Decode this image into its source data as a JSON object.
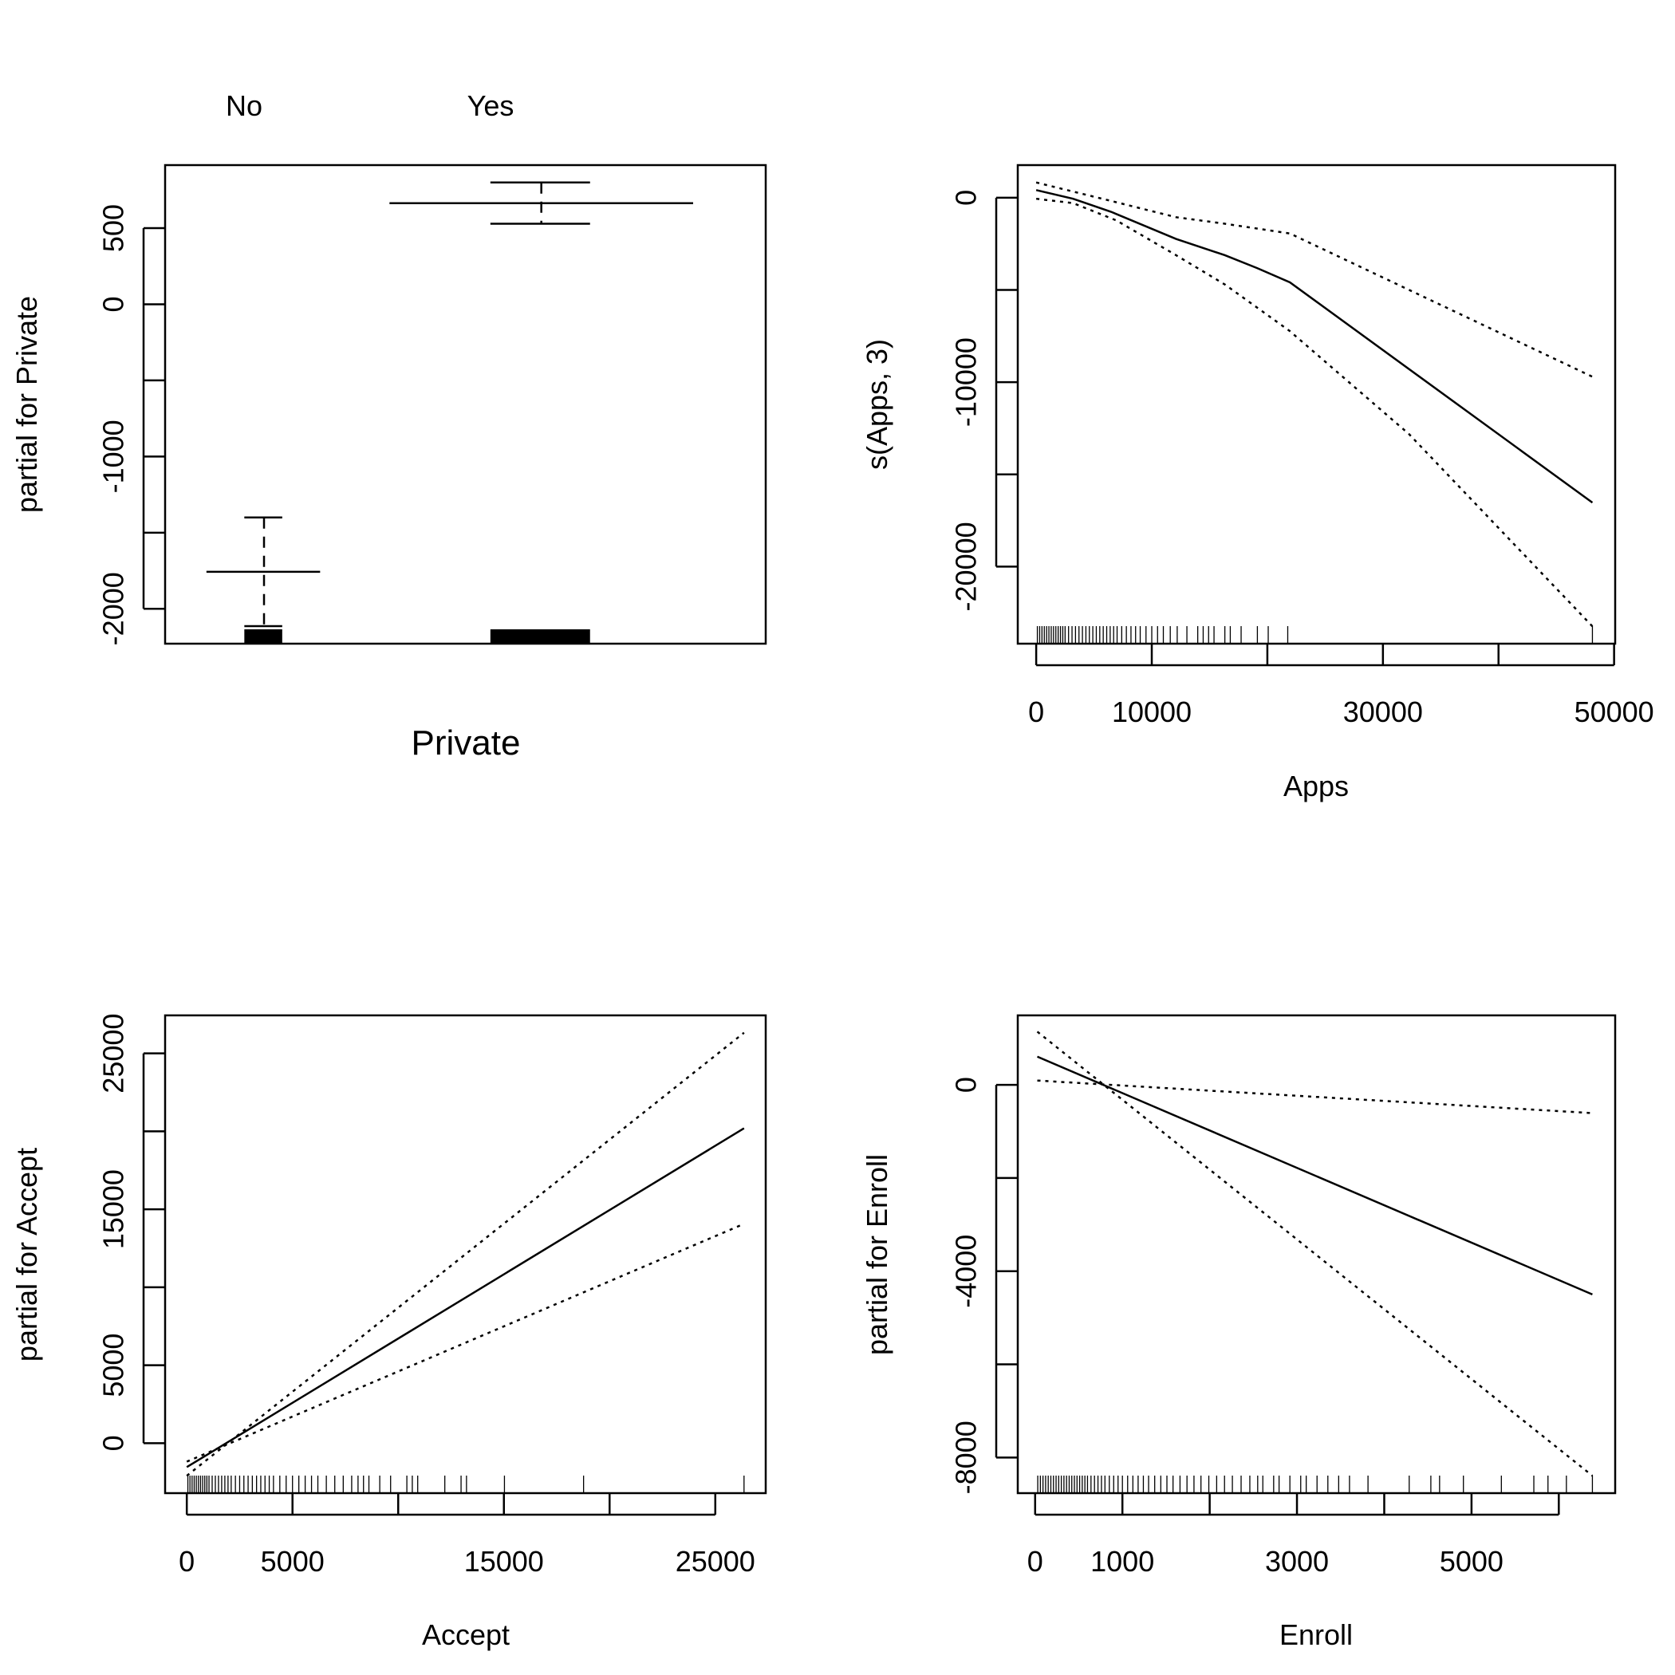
{
  "chart_data": [
    {
      "type": "line",
      "subtype": "factor-termplot",
      "xlabel": "Private",
      "ylabel": "partial for Private",
      "categories": [
        "No",
        "Yes"
      ],
      "ylim": [
        -2229,
        914
      ],
      "yticks": [
        -2000,
        -1500,
        -1000,
        -500,
        0,
        500
      ],
      "ytick_labels": [
        "-2000",
        "",
        "-1000",
        "",
        "0",
        "500"
      ],
      "means": [
        -1757,
        664
      ],
      "se_upper": [
        -1400,
        800
      ],
      "se_lower": [
        -2114,
        529
      ],
      "rug": true
    },
    {
      "type": "line",
      "xlabel": "Apps",
      "ylabel": "s(Apps, 3)",
      "xlim": [
        -1595,
        50094
      ],
      "ylim": [
        -24176,
        1765
      ],
      "xticks": [
        0,
        10000,
        20000,
        30000,
        40000,
        50000
      ],
      "xtick_labels": [
        "0",
        "10000",
        "",
        "30000",
        "",
        "50000"
      ],
      "yticks": [
        -20000,
        -15000,
        -10000,
        -5000,
        0
      ],
      "ytick_labels": [
        "-20000",
        "",
        "-10000",
        "",
        "0"
      ],
      "series": [
        {
          "style": "solid",
          "x": [
            0,
            3190,
            6473,
            12101,
            16323,
            19137,
            21951,
            48124
          ],
          "y": [
            412,
            -59,
            -765,
            -2235,
            -3118,
            -3824,
            -4588,
            -16529
          ]
        },
        {
          "style": "dotted",
          "x": [
            0,
            6473,
            12101,
            16323,
            21951,
            48124
          ],
          "y": [
            824,
            -176,
            -1059,
            -1412,
            -1941,
            -9706
          ]
        },
        {
          "style": "dotted",
          "x": [
            0,
            3190,
            6942,
            12101,
            16323,
            21951,
            32270,
            48124
          ],
          "y": [
            -59,
            -294,
            -1235,
            -3118,
            -4706,
            -7235,
            -12824,
            -23235
          ]
        }
      ],
      "rug": [
        100,
        300,
        500,
        700,
        900,
        1100,
        1300,
        1500,
        1700,
        1900,
        2100,
        2300,
        2500,
        2800,
        3100,
        3400,
        3700,
        4000,
        4300,
        4600,
        4900,
        5200,
        5500,
        5800,
        6100,
        6400,
        6700,
        7000,
        7400,
        7800,
        8200,
        8600,
        9000,
        9500,
        10000,
        10500,
        11000,
        11600,
        12200,
        13039,
        13977,
        14447,
        14916,
        15385,
        16323,
        16792,
        17730,
        19137,
        20075,
        21764,
        48124
      ]
    },
    {
      "type": "line",
      "xlabel": "Accept",
      "ylabel": "partial for Accept",
      "xlim": [
        -1026,
        27385
      ],
      "ylim": [
        -3203,
        27437
      ],
      "xticks": [
        0,
        5000,
        10000,
        15000,
        20000,
        25000
      ],
      "xtick_labels": [
        "0",
        "5000",
        "",
        "15000",
        "",
        "25000"
      ],
      "yticks": [
        0,
        5000,
        10000,
        15000,
        20000,
        25000
      ],
      "ytick_labels": [
        "0",
        "5000",
        "",
        "15000",
        "",
        "25000"
      ],
      "series": [
        {
          "style": "solid",
          "x": [
            0,
            26359
          ],
          "y": [
            -1532,
            20195
          ]
        },
        {
          "style": "dotted",
          "x": [
            0,
            26359
          ],
          "y": [
            -2089,
            26323
          ]
        },
        {
          "style": "dotted",
          "x": [
            0,
            26359
          ],
          "y": [
            -1184,
            14067
          ]
        }
      ],
      "rug": [
        50,
        150,
        250,
        350,
        450,
        550,
        650,
        750,
        850,
        950,
        1050,
        1200,
        1350,
        1500,
        1650,
        1800,
        1950,
        2100,
        2300,
        2500,
        2700,
        2900,
        3100,
        3300,
        3500,
        3700,
        3900,
        4100,
        4400,
        4700,
        5000,
        5300,
        5600,
        5900,
        6200,
        6600,
        7000,
        7400,
        7800,
        8100,
        8359,
        8615,
        9128,
        9641,
        10410,
        10667,
        10923,
        12205,
        12974,
        13231,
        15026,
        18769,
        26359
      ]
    },
    {
      "type": "line",
      "xlabel": "Enroll",
      "ylabel": "partial for Enroll",
      "xlim": [
        -199,
        6646
      ],
      "ylim": [
        -8765,
        1492
      ],
      "xticks": [
        0,
        1000,
        2000,
        3000,
        4000,
        5000,
        6000
      ],
      "xtick_labels": [
        "0",
        "1000",
        "",
        "3000",
        "",
        "5000",
        ""
      ],
      "yticks": [
        -8000,
        -6000,
        -4000,
        -2000,
        0
      ],
      "ytick_labels": [
        "-8000",
        "",
        "-4000",
        "",
        "0"
      ],
      "series": [
        {
          "style": "solid",
          "x": [
            25,
            6385
          ],
          "y": [
            606,
            -4499
          ]
        },
        {
          "style": "dotted",
          "x": [
            25,
            6385
          ],
          "y": [
            1142,
            -8392
          ]
        },
        {
          "style": "dotted",
          "x": [
            25,
            6385
          ],
          "y": [
            93,
            -606
          ]
        }
      ],
      "rug": [
        30,
        60,
        90,
        120,
        150,
        180,
        210,
        240,
        270,
        300,
        330,
        360,
        390,
        420,
        450,
        480,
        510,
        540,
        570,
        600,
        640,
        680,
        720,
        760,
        800,
        850,
        900,
        950,
        1000,
        1060,
        1120,
        1180,
        1240,
        1300,
        1370,
        1440,
        1510,
        1580,
        1660,
        1740,
        1820,
        1900,
        1990,
        2080,
        2170,
        2260,
        2360,
        2460,
        2550,
        2609,
        2733,
        2795,
        2919,
        3043,
        3106,
        3230,
        3354,
        3478,
        3602,
        3814,
        4286,
        4534,
        4634,
        4907,
        5342,
        5714,
        5876,
        6087,
        6385
      ]
    }
  ]
}
